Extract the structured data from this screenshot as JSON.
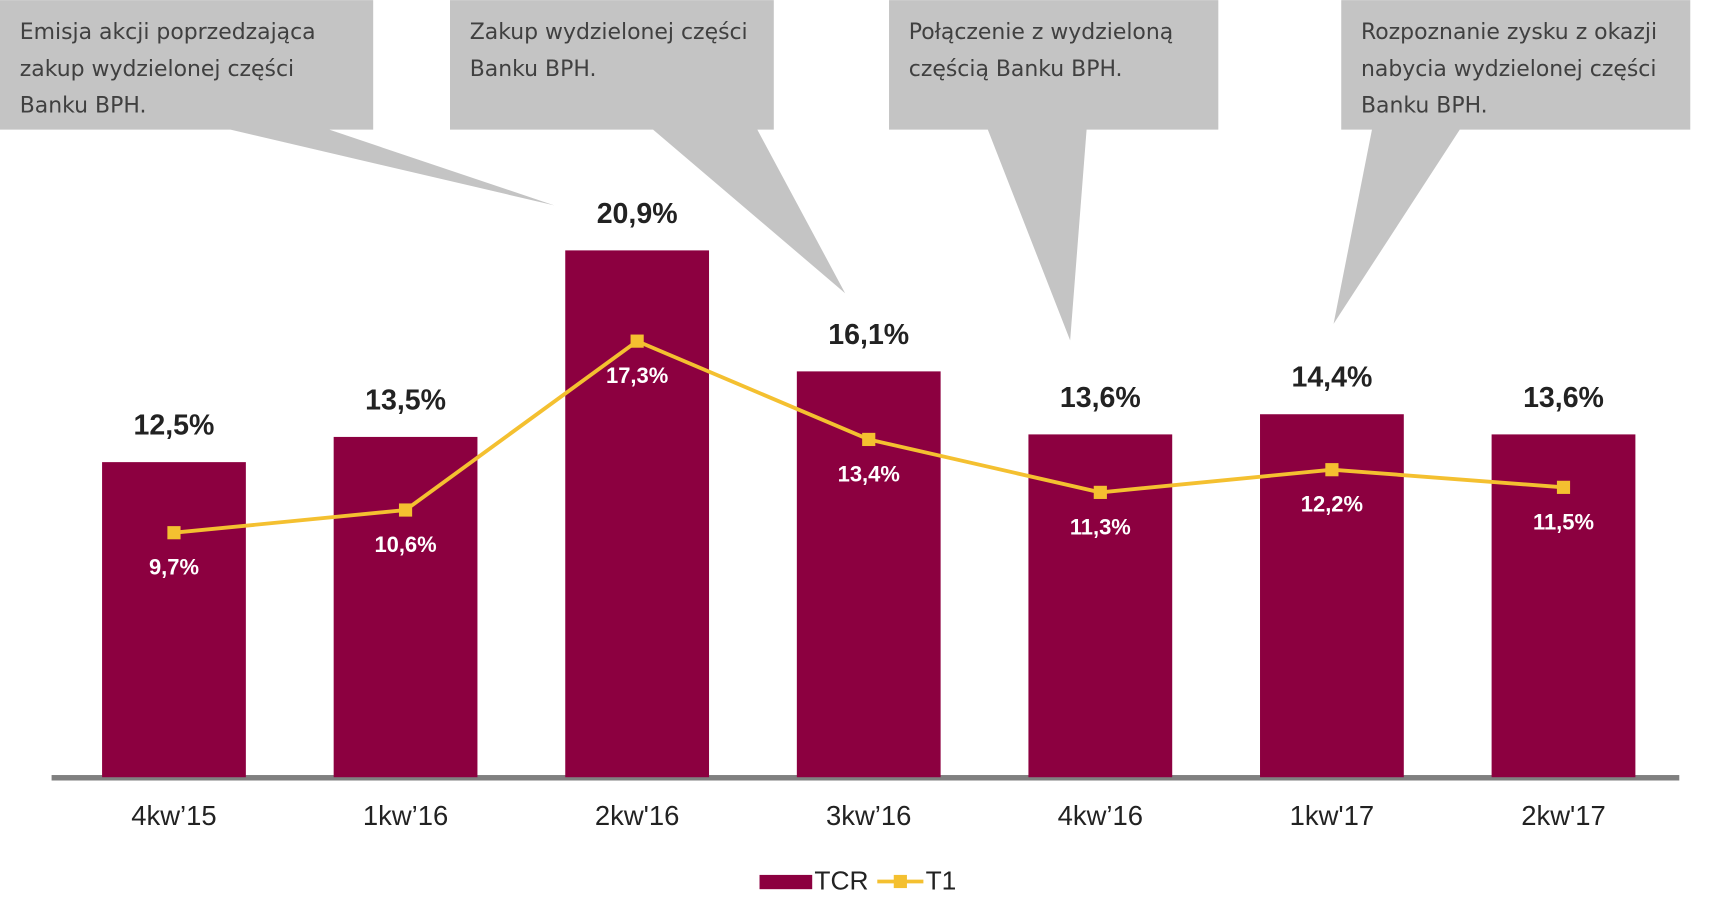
{
  "chart_data": {
    "type": "bar_line",
    "categories": [
      "4kw’15",
      "1kw’16",
      "2kw'16",
      "3kw’16",
      "4kw’16",
      "1kw'17",
      "2kw'17"
    ],
    "series": [
      {
        "name": "TCR",
        "type": "bar",
        "color": "#8c0040",
        "values": [
          12.5,
          13.5,
          20.9,
          16.1,
          13.6,
          14.4,
          13.6
        ],
        "value_labels": [
          "12,5%",
          "13,5%",
          "20,9%",
          "16,1%",
          "13,6%",
          "14,4%",
          "13,6%"
        ]
      },
      {
        "name": "T1",
        "type": "line",
        "color": "#f4c030",
        "values": [
          9.7,
          10.6,
          17.3,
          13.4,
          11.3,
          12.2,
          11.5
        ],
        "value_labels": [
          "9,7%",
          "10,6%",
          "17,3%",
          "13,4%",
          "11,3%",
          "12,2%",
          "11,5%"
        ]
      }
    ],
    "annotations": [
      [
        "Emisja akcji poprzedzająca",
        "zakup wydzielonej części",
        "Banku BPH."
      ],
      [
        "Zakup wydzielonej części",
        "Banku BPH."
      ],
      [
        "Połączenie z wydzieloną",
        "częścią Banku BPH."
      ],
      [
        "Rozpoznanie zysku z okazji",
        "nabycia wydzielonej części",
        "Banku BPH."
      ]
    ],
    "legend": "bottom"
  }
}
